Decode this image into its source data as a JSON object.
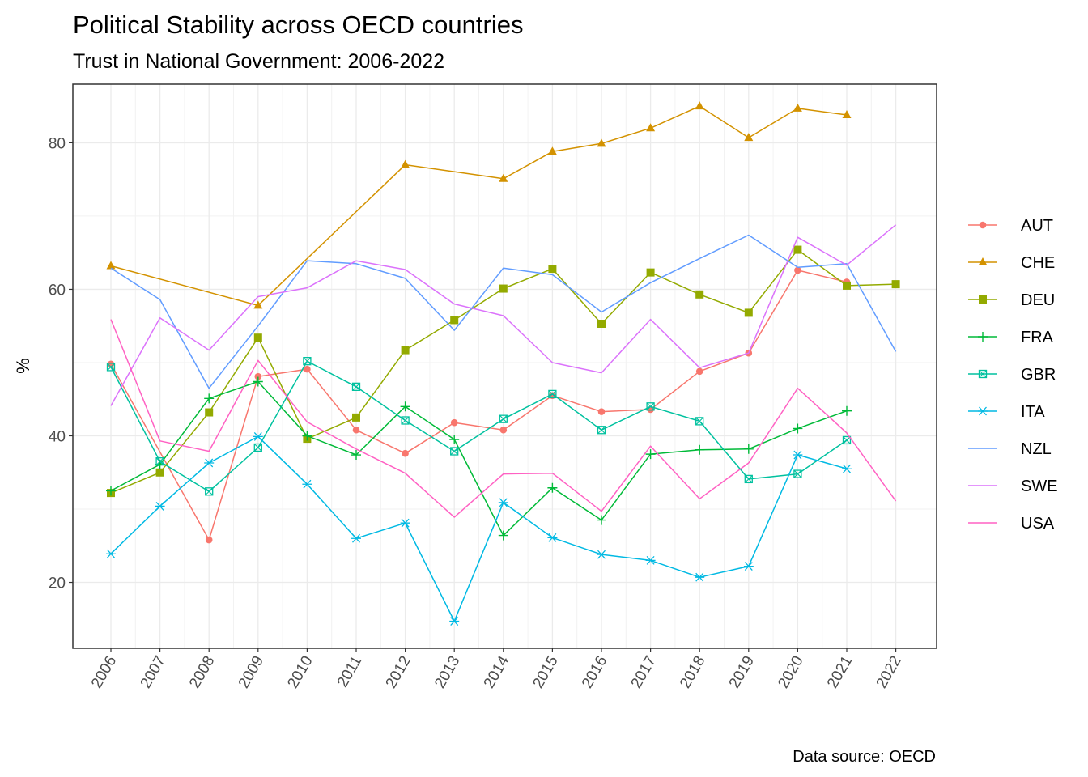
{
  "chart_data": {
    "type": "line",
    "title": "Political Stability across OECD countries",
    "subtitle": "Trust in National Government: 2006-2022",
    "xlabel": "",
    "ylabel": "%",
    "caption": "Data source: OECD",
    "x": [
      "2006",
      "2007",
      "2008",
      "2009",
      "2010",
      "2011",
      "2012",
      "2013",
      "2014",
      "2015",
      "2016",
      "2017",
      "2018",
      "2019",
      "2020",
      "2021",
      "2022"
    ],
    "ylim": [
      11,
      88
    ],
    "yticks": [
      20,
      40,
      60,
      80
    ],
    "grid": true,
    "legend_position": "right",
    "series": [
      {
        "name": "AUT",
        "color": "#F8766D",
        "marker": "circle",
        "values": [
          49.8,
          null,
          25.8,
          48.1,
          49.1,
          40.8,
          37.6,
          41.8,
          40.8,
          45.5,
          43.3,
          43.6,
          48.8,
          51.3,
          62.6,
          61.0,
          null
        ]
      },
      {
        "name": "CHE",
        "color": "#D39200",
        "marker": "triangle",
        "values": [
          63.2,
          null,
          null,
          57.8,
          null,
          null,
          77.0,
          null,
          75.1,
          78.8,
          79.9,
          82.0,
          85.0,
          80.7,
          84.7,
          83.8,
          null
        ]
      },
      {
        "name": "DEU",
        "color": "#93AA00",
        "marker": "square",
        "values": [
          32.2,
          35.0,
          43.2,
          53.4,
          39.6,
          42.5,
          51.7,
          55.8,
          60.1,
          62.8,
          55.3,
          62.3,
          59.3,
          56.8,
          65.4,
          60.5,
          60.7
        ]
      },
      {
        "name": "FRA",
        "color": "#00BA38",
        "marker": "plus",
        "values": [
          32.5,
          36.1,
          45.1,
          47.4,
          40.0,
          37.4,
          44.0,
          39.5,
          26.4,
          32.9,
          28.5,
          37.5,
          38.1,
          38.2,
          41.0,
          43.4,
          null
        ]
      },
      {
        "name": "GBR",
        "color": "#00C19F",
        "marker": "square-cross",
        "values": [
          49.4,
          36.5,
          32.4,
          38.4,
          50.2,
          46.7,
          42.1,
          37.9,
          42.3,
          45.7,
          40.8,
          44.0,
          42.0,
          34.1,
          34.8,
          39.4,
          null
        ]
      },
      {
        "name": "ITA",
        "color": "#00B9E3",
        "marker": "asterisk",
        "values": [
          23.9,
          30.4,
          36.3,
          39.9,
          33.4,
          26.0,
          28.1,
          14.7,
          30.9,
          26.1,
          23.8,
          23.0,
          20.7,
          22.2,
          37.4,
          35.5,
          null
        ]
      },
      {
        "name": "NZL",
        "color": "#619CFF",
        "marker": "none",
        "values": [
          62.9,
          58.6,
          46.5,
          55.0,
          63.9,
          63.5,
          61.5,
          54.4,
          62.9,
          62.0,
          56.9,
          60.9,
          64.2,
          67.4,
          63.0,
          63.5,
          51.5
        ]
      },
      {
        "name": "SWE",
        "color": "#DB72FB",
        "marker": "none",
        "values": [
          44.1,
          56.1,
          51.7,
          59.0,
          60.2,
          63.9,
          62.7,
          58.0,
          56.4,
          50.0,
          48.6,
          55.9,
          49.3,
          51.3,
          67.1,
          63.3,
          68.8
        ]
      },
      {
        "name": "USA",
        "color": "#FF61C3",
        "marker": "none",
        "values": [
          55.9,
          39.3,
          37.9,
          50.3,
          41.9,
          38.2,
          34.9,
          28.9,
          34.8,
          34.9,
          29.7,
          38.6,
          31.4,
          36.3,
          46.5,
          40.4,
          31.1
        ]
      }
    ]
  }
}
